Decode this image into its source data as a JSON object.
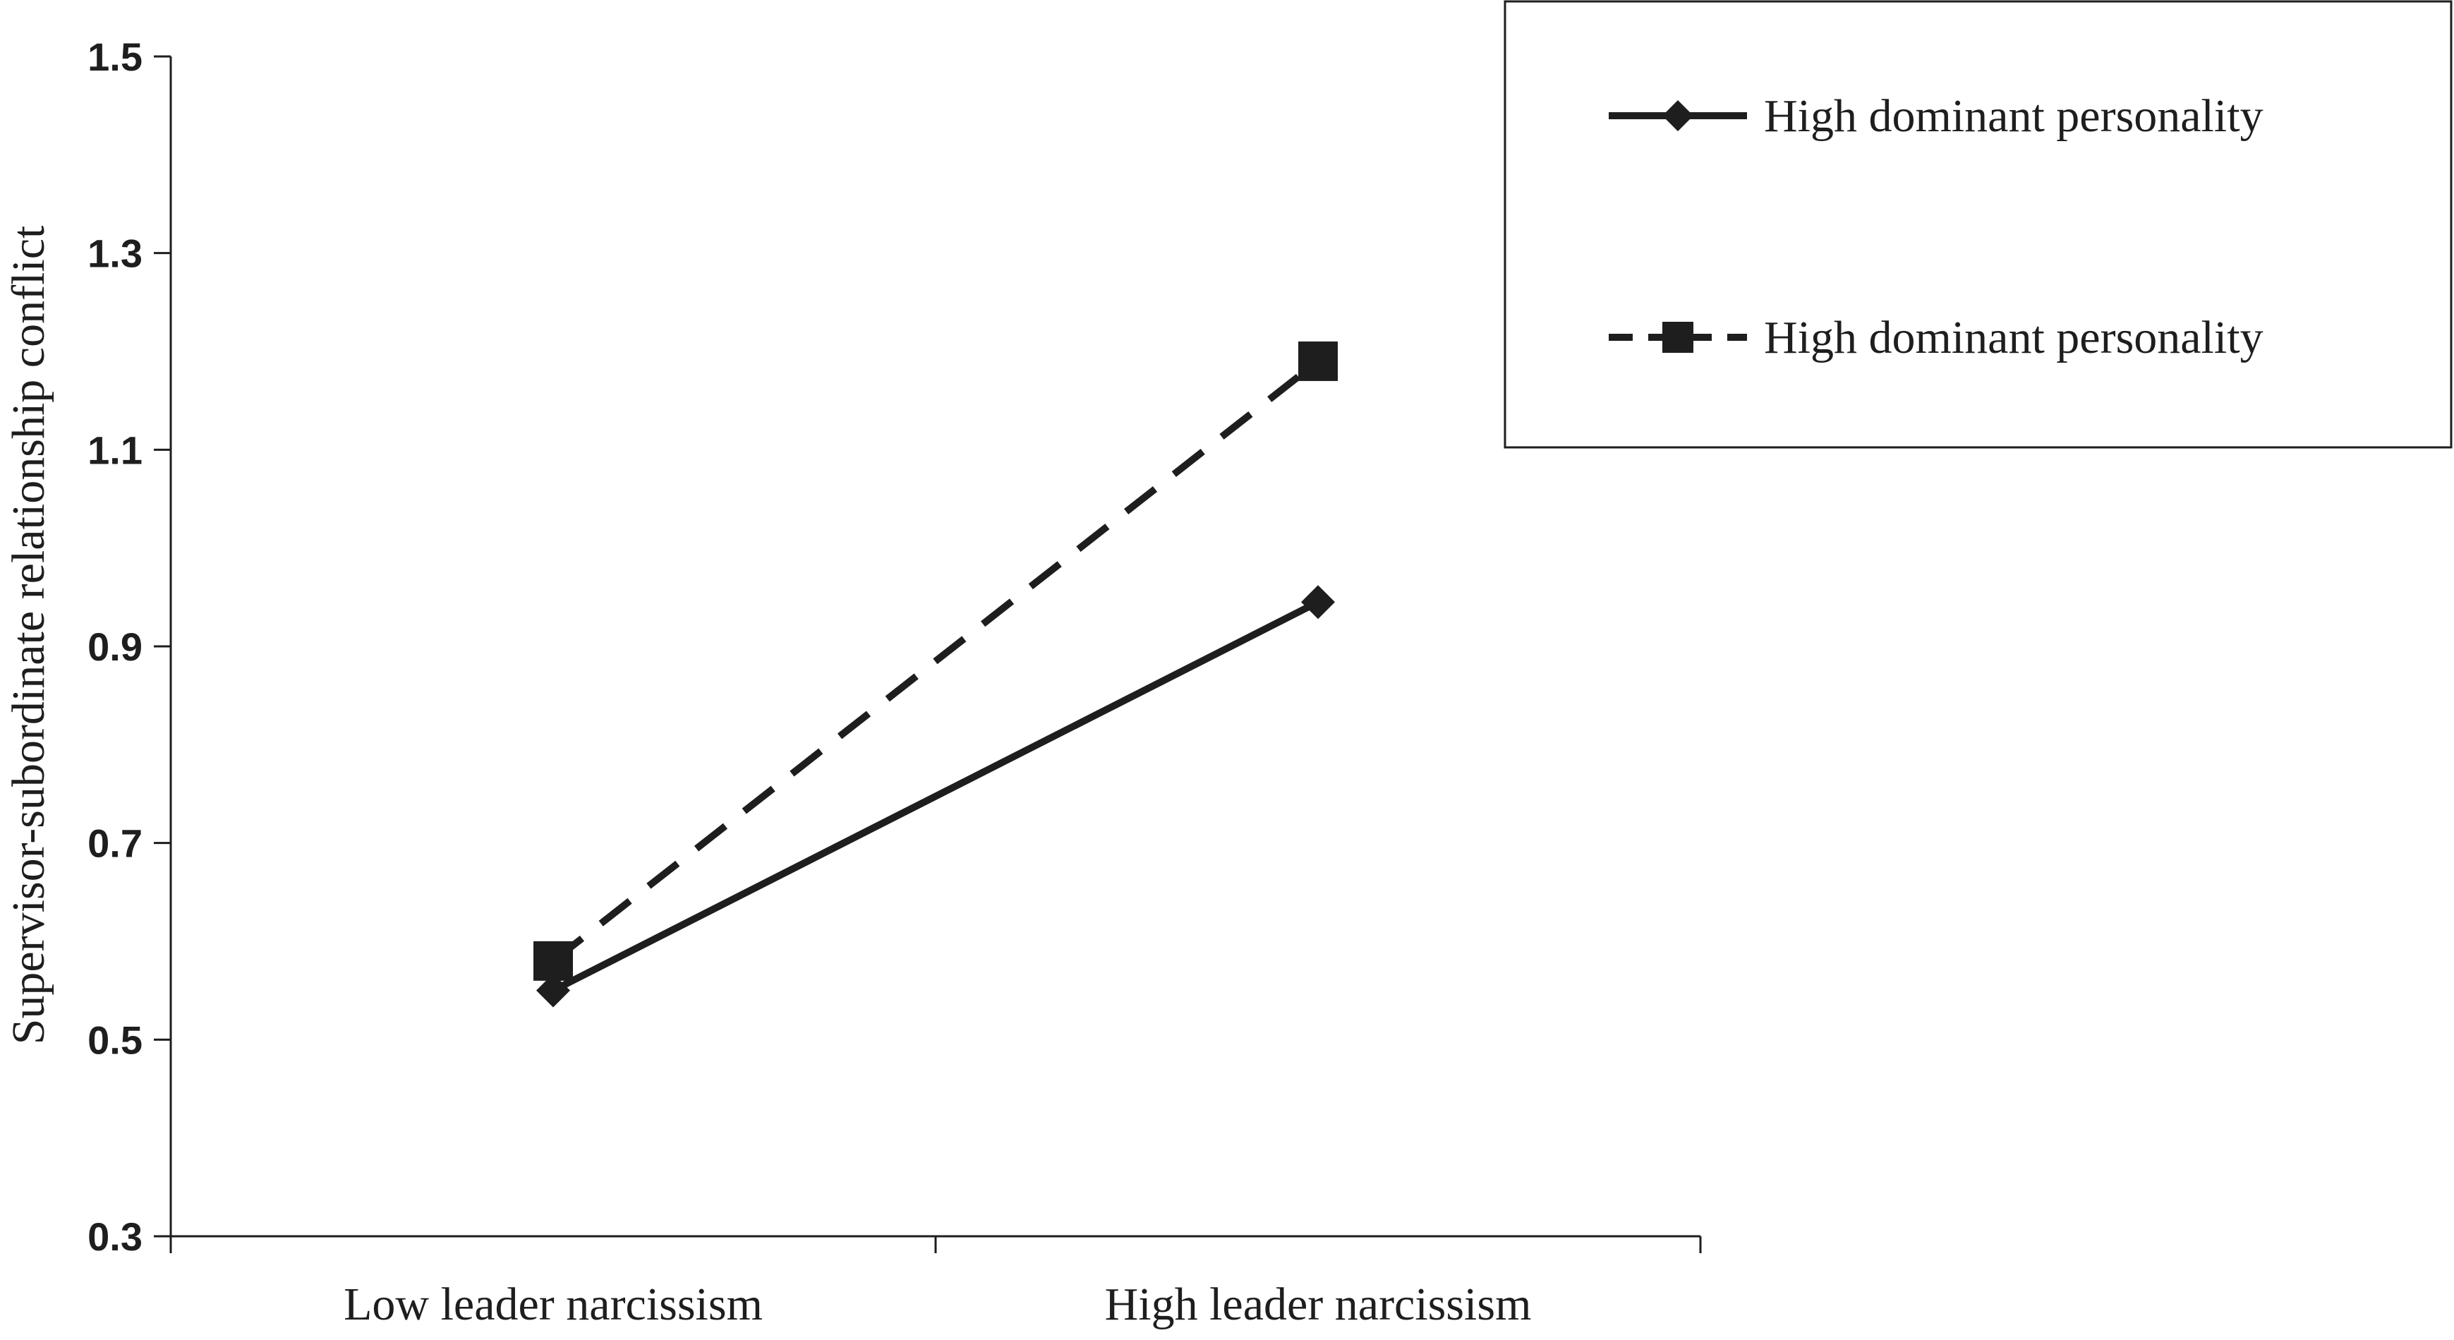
{
  "chart_data": {
    "type": "line",
    "categories": [
      "Low leader narcissism",
      "High leader narcissism"
    ],
    "series": [
      {
        "name": "High dominant personality",
        "values": [
          0.55,
          0.945
        ],
        "line_style": "solid",
        "marker": "diamond",
        "color": "#1e1e1e"
      },
      {
        "name": "High dominant personality",
        "values": [
          0.58,
          1.19
        ],
        "line_style": "dashed",
        "marker": "square",
        "color": "#1e1e1e"
      }
    ],
    "title": "",
    "xlabel": "",
    "ylabel": "Supervisor-subordinate relationship conflict",
    "ylim": [
      0.3,
      1.5
    ],
    "yticks": [
      "0.3",
      "0.5",
      "0.7",
      "0.9",
      "1.1",
      "1.3",
      "1.5"
    ],
    "grid": false,
    "legend_position": "top-right"
  }
}
